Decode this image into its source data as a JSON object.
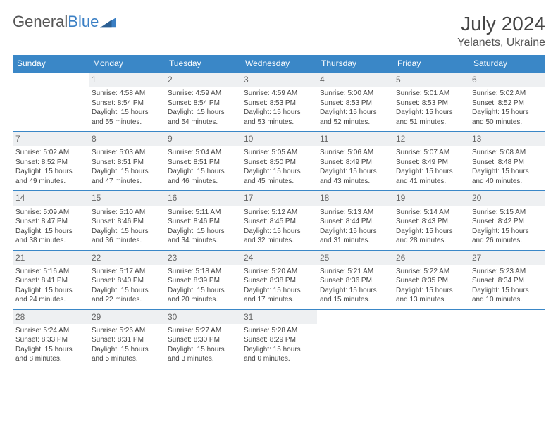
{
  "brand": {
    "part1": "General",
    "part2": "Blue"
  },
  "title": "July 2024",
  "location": "Yelanets, Ukraine",
  "colors": {
    "header_bg": "#3a87c7",
    "header_fg": "#ffffff",
    "daynum_bg": "#eef0f2",
    "border": "#3a87c7"
  },
  "weekdays": [
    "Sunday",
    "Monday",
    "Tuesday",
    "Wednesday",
    "Thursday",
    "Friday",
    "Saturday"
  ],
  "weeks": [
    [
      null,
      {
        "n": "1",
        "sr": "Sunrise: 4:58 AM",
        "ss": "Sunset: 8:54 PM",
        "d1": "Daylight: 15 hours",
        "d2": "and 55 minutes."
      },
      {
        "n": "2",
        "sr": "Sunrise: 4:59 AM",
        "ss": "Sunset: 8:54 PM",
        "d1": "Daylight: 15 hours",
        "d2": "and 54 minutes."
      },
      {
        "n": "3",
        "sr": "Sunrise: 4:59 AM",
        "ss": "Sunset: 8:53 PM",
        "d1": "Daylight: 15 hours",
        "d2": "and 53 minutes."
      },
      {
        "n": "4",
        "sr": "Sunrise: 5:00 AM",
        "ss": "Sunset: 8:53 PM",
        "d1": "Daylight: 15 hours",
        "d2": "and 52 minutes."
      },
      {
        "n": "5",
        "sr": "Sunrise: 5:01 AM",
        "ss": "Sunset: 8:53 PM",
        "d1": "Daylight: 15 hours",
        "d2": "and 51 minutes."
      },
      {
        "n": "6",
        "sr": "Sunrise: 5:02 AM",
        "ss": "Sunset: 8:52 PM",
        "d1": "Daylight: 15 hours",
        "d2": "and 50 minutes."
      }
    ],
    [
      {
        "n": "7",
        "sr": "Sunrise: 5:02 AM",
        "ss": "Sunset: 8:52 PM",
        "d1": "Daylight: 15 hours",
        "d2": "and 49 minutes."
      },
      {
        "n": "8",
        "sr": "Sunrise: 5:03 AM",
        "ss": "Sunset: 8:51 PM",
        "d1": "Daylight: 15 hours",
        "d2": "and 47 minutes."
      },
      {
        "n": "9",
        "sr": "Sunrise: 5:04 AM",
        "ss": "Sunset: 8:51 PM",
        "d1": "Daylight: 15 hours",
        "d2": "and 46 minutes."
      },
      {
        "n": "10",
        "sr": "Sunrise: 5:05 AM",
        "ss": "Sunset: 8:50 PM",
        "d1": "Daylight: 15 hours",
        "d2": "and 45 minutes."
      },
      {
        "n": "11",
        "sr": "Sunrise: 5:06 AM",
        "ss": "Sunset: 8:49 PM",
        "d1": "Daylight: 15 hours",
        "d2": "and 43 minutes."
      },
      {
        "n": "12",
        "sr": "Sunrise: 5:07 AM",
        "ss": "Sunset: 8:49 PM",
        "d1": "Daylight: 15 hours",
        "d2": "and 41 minutes."
      },
      {
        "n": "13",
        "sr": "Sunrise: 5:08 AM",
        "ss": "Sunset: 8:48 PM",
        "d1": "Daylight: 15 hours",
        "d2": "and 40 minutes."
      }
    ],
    [
      {
        "n": "14",
        "sr": "Sunrise: 5:09 AM",
        "ss": "Sunset: 8:47 PM",
        "d1": "Daylight: 15 hours",
        "d2": "and 38 minutes."
      },
      {
        "n": "15",
        "sr": "Sunrise: 5:10 AM",
        "ss": "Sunset: 8:46 PM",
        "d1": "Daylight: 15 hours",
        "d2": "and 36 minutes."
      },
      {
        "n": "16",
        "sr": "Sunrise: 5:11 AM",
        "ss": "Sunset: 8:46 PM",
        "d1": "Daylight: 15 hours",
        "d2": "and 34 minutes."
      },
      {
        "n": "17",
        "sr": "Sunrise: 5:12 AM",
        "ss": "Sunset: 8:45 PM",
        "d1": "Daylight: 15 hours",
        "d2": "and 32 minutes."
      },
      {
        "n": "18",
        "sr": "Sunrise: 5:13 AM",
        "ss": "Sunset: 8:44 PM",
        "d1": "Daylight: 15 hours",
        "d2": "and 31 minutes."
      },
      {
        "n": "19",
        "sr": "Sunrise: 5:14 AM",
        "ss": "Sunset: 8:43 PM",
        "d1": "Daylight: 15 hours",
        "d2": "and 28 minutes."
      },
      {
        "n": "20",
        "sr": "Sunrise: 5:15 AM",
        "ss": "Sunset: 8:42 PM",
        "d1": "Daylight: 15 hours",
        "d2": "and 26 minutes."
      }
    ],
    [
      {
        "n": "21",
        "sr": "Sunrise: 5:16 AM",
        "ss": "Sunset: 8:41 PM",
        "d1": "Daylight: 15 hours",
        "d2": "and 24 minutes."
      },
      {
        "n": "22",
        "sr": "Sunrise: 5:17 AM",
        "ss": "Sunset: 8:40 PM",
        "d1": "Daylight: 15 hours",
        "d2": "and 22 minutes."
      },
      {
        "n": "23",
        "sr": "Sunrise: 5:18 AM",
        "ss": "Sunset: 8:39 PM",
        "d1": "Daylight: 15 hours",
        "d2": "and 20 minutes."
      },
      {
        "n": "24",
        "sr": "Sunrise: 5:20 AM",
        "ss": "Sunset: 8:38 PM",
        "d1": "Daylight: 15 hours",
        "d2": "and 17 minutes."
      },
      {
        "n": "25",
        "sr": "Sunrise: 5:21 AM",
        "ss": "Sunset: 8:36 PM",
        "d1": "Daylight: 15 hours",
        "d2": "and 15 minutes."
      },
      {
        "n": "26",
        "sr": "Sunrise: 5:22 AM",
        "ss": "Sunset: 8:35 PM",
        "d1": "Daylight: 15 hours",
        "d2": "and 13 minutes."
      },
      {
        "n": "27",
        "sr": "Sunrise: 5:23 AM",
        "ss": "Sunset: 8:34 PM",
        "d1": "Daylight: 15 hours",
        "d2": "and 10 minutes."
      }
    ],
    [
      {
        "n": "28",
        "sr": "Sunrise: 5:24 AM",
        "ss": "Sunset: 8:33 PM",
        "d1": "Daylight: 15 hours",
        "d2": "and 8 minutes."
      },
      {
        "n": "29",
        "sr": "Sunrise: 5:26 AM",
        "ss": "Sunset: 8:31 PM",
        "d1": "Daylight: 15 hours",
        "d2": "and 5 minutes."
      },
      {
        "n": "30",
        "sr": "Sunrise: 5:27 AM",
        "ss": "Sunset: 8:30 PM",
        "d1": "Daylight: 15 hours",
        "d2": "and 3 minutes."
      },
      {
        "n": "31",
        "sr": "Sunrise: 5:28 AM",
        "ss": "Sunset: 8:29 PM",
        "d1": "Daylight: 15 hours",
        "d2": "and 0 minutes."
      },
      null,
      null,
      null
    ]
  ]
}
